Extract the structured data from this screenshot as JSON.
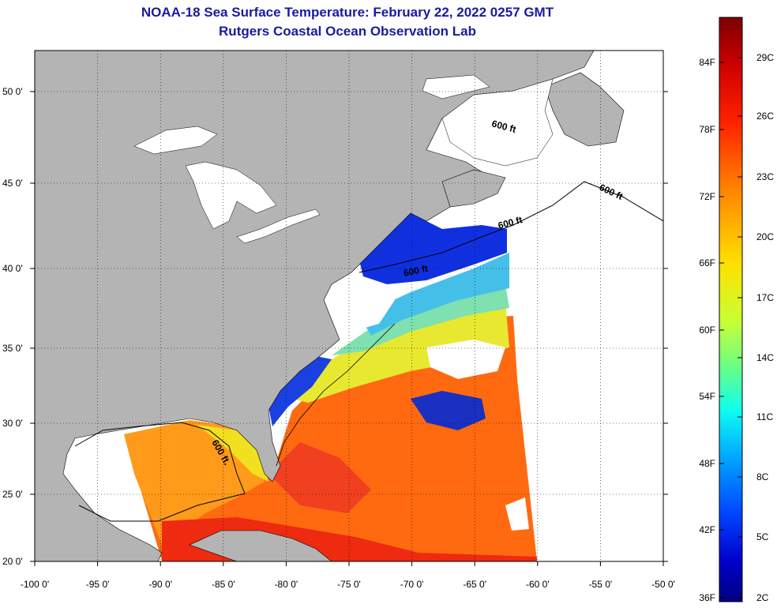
{
  "title": {
    "line1": "NOAA-18 Sea Surface Temperature:  February 22, 2022 0257 GMT",
    "line2": "Rutgers Coastal Ocean Observation Lab"
  },
  "map": {
    "lon_range": [
      -100,
      -50
    ],
    "lat_range": [
      20,
      52
    ],
    "lon_ticks": [
      "-100 0'",
      "-95 0'",
      "-90 0'",
      "-85 0'",
      "-80 0'",
      "-75 0'",
      "-70 0'",
      "-65 0'",
      "-60 0'",
      "-55 0'",
      "-50 0'"
    ],
    "lat_ticks": [
      "20 0'",
      "25 0'",
      "30 0'",
      "35 0'",
      "40 0'",
      "45 0'",
      "50 0'"
    ],
    "contour_label": "600 ft.",
    "contour_labels": [
      "600 ft",
      "600 ft",
      "600 ft",
      "600 ft",
      "600 ft."
    ],
    "colors": {
      "land": "#b4b4b4",
      "cloud_nodata": "#ffffff",
      "grid": "#000000"
    }
  },
  "colorbar": {
    "fahrenheit": [
      "84F",
      "78F",
      "72F",
      "66F",
      "60F",
      "54F",
      "48F",
      "42F",
      "36F"
    ],
    "celsius": [
      "29C",
      "26C",
      "23C",
      "20C",
      "17C",
      "14C",
      "11C",
      "8C",
      "5C",
      "2C"
    ],
    "colors": [
      "#7a0000",
      "#cc0000",
      "#ff3300",
      "#ff8800",
      "#ffd400",
      "#e6ff1a",
      "#9cff4d",
      "#33ffcc",
      "#00d9ff",
      "#0099ff",
      "#0044ff",
      "#0000cc",
      "#000080"
    ]
  }
}
